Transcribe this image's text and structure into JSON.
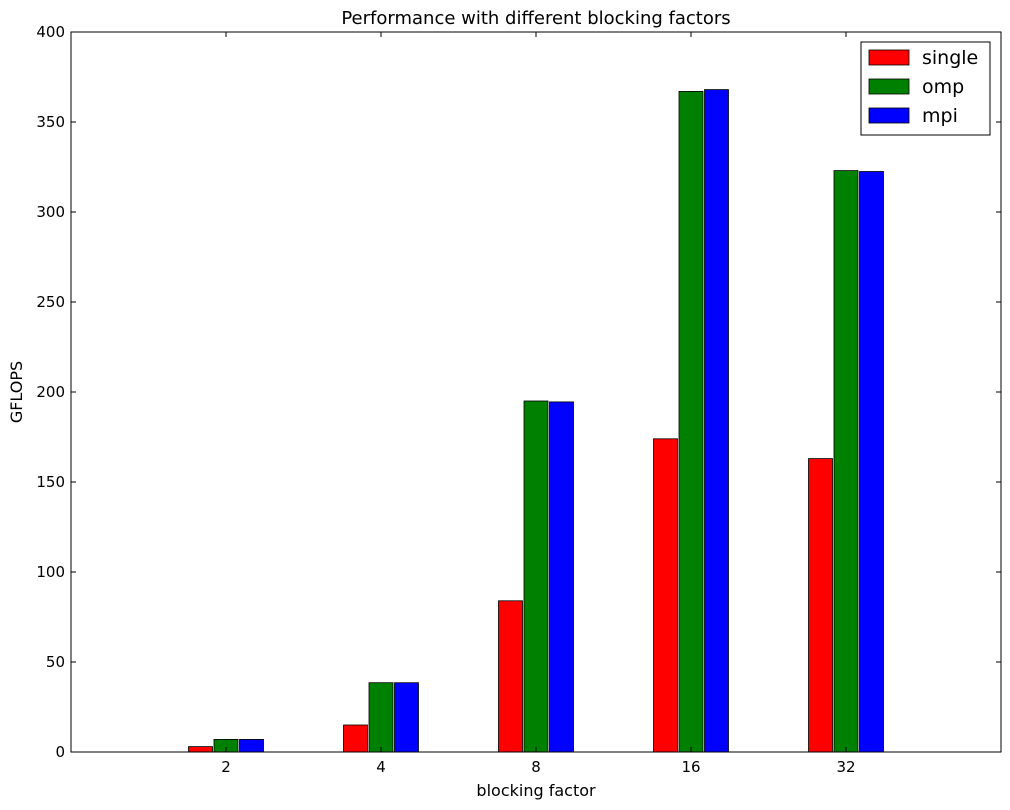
{
  "chart_data": {
    "type": "bar",
    "title": "Performance with different blocking factors",
    "xlabel": "blocking factor",
    "ylabel": "GFLOPS",
    "categories": [
      "2",
      "4",
      "8",
      "16",
      "32"
    ],
    "ylim": [
      0,
      400
    ],
    "yticks": [
      "0",
      "50",
      "100",
      "150",
      "200",
      "250",
      "300",
      "350",
      "400"
    ],
    "grid": false,
    "legend_position": "top-right",
    "series": [
      {
        "name": "single",
        "color": "#ff0000",
        "values": [
          3,
          15,
          84,
          174,
          163
        ]
      },
      {
        "name": "omp",
        "color": "#008000",
        "values": [
          7,
          38.5,
          195,
          367,
          323
        ]
      },
      {
        "name": "mpi",
        "color": "#0000ff",
        "values": [
          7,
          38.5,
          194.5,
          368,
          322.5
        ]
      }
    ]
  }
}
